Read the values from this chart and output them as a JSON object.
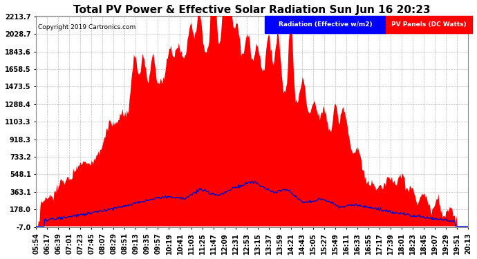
{
  "title": "Total PV Power & Effective Solar Radiation Sun Jun 16 20:23",
  "copyright": "Copyright 2019 Cartronics.com",
  "legend_radiation": "Radiation (Effective w/m2)",
  "legend_pv": "PV Panels (DC Watts)",
  "ylim": [
    -7.0,
    2213.7
  ],
  "yticks": [
    -7.0,
    178.0,
    363.1,
    548.1,
    733.2,
    918.3,
    1103.3,
    1288.4,
    1473.5,
    1658.5,
    1843.6,
    2028.7,
    2213.7
  ],
  "background_color": "#ffffff",
  "plot_bg_color": "#ffffff",
  "grid_color": "#aaaaaa",
  "title_color": "#000000",
  "title_fontsize": 11,
  "tick_fontsize": 7,
  "pv_color": "#ff0000",
  "radiation_color": "#0000cc",
  "xtick_labels": [
    "05:54",
    "06:17",
    "06:39",
    "07:01",
    "07:23",
    "07:45",
    "08:07",
    "08:29",
    "08:51",
    "09:13",
    "09:35",
    "09:57",
    "10:19",
    "10:41",
    "11:03",
    "11:25",
    "11:47",
    "12:09",
    "12:31",
    "12:53",
    "13:15",
    "13:37",
    "13:59",
    "14:21",
    "14:43",
    "15:05",
    "15:27",
    "15:49",
    "16:11",
    "16:33",
    "16:55",
    "17:17",
    "17:39",
    "18:01",
    "18:23",
    "18:45",
    "19:07",
    "19:29",
    "19:51",
    "20:13"
  ]
}
